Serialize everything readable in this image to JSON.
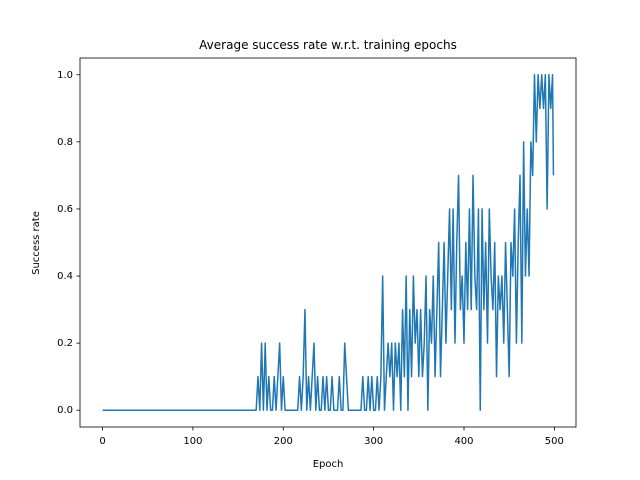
{
  "chart_data": {
    "type": "line",
    "title": "Average success rate w.r.t. training epochs",
    "xlabel": "Epoch",
    "ylabel": "Success rate",
    "color": "#1f77b4",
    "x": [
      0,
      168,
      170,
      172,
      174,
      176,
      178,
      180,
      182,
      184,
      186,
      188,
      190,
      192,
      194,
      196,
      198,
      200,
      202,
      204,
      206,
      208,
      210,
      212,
      214,
      216,
      218,
      220,
      222,
      224,
      226,
      228,
      230,
      232,
      234,
      236,
      238,
      240,
      242,
      244,
      246,
      248,
      250,
      252,
      254,
      256,
      258,
      260,
      262,
      264,
      266,
      268,
      270,
      272,
      274,
      276,
      278,
      280,
      282,
      284,
      286,
      288,
      290,
      292,
      294,
      296,
      298,
      300,
      302,
      304,
      306,
      308,
      310,
      312,
      314,
      316,
      318,
      320,
      322,
      324,
      326,
      328,
      330,
      332,
      334,
      336,
      338,
      340,
      342,
      344,
      346,
      348,
      350,
      352,
      354,
      356,
      358,
      360,
      362,
      364,
      366,
      368,
      370,
      372,
      374,
      376,
      378,
      380,
      382,
      384,
      386,
      388,
      390,
      392,
      394,
      396,
      398,
      400,
      402,
      404,
      406,
      408,
      410,
      412,
      414,
      416,
      418,
      420,
      422,
      424,
      426,
      428,
      430,
      432,
      434,
      436,
      438,
      440,
      442,
      444,
      446,
      448,
      450,
      452,
      454,
      456,
      458,
      460,
      462,
      464,
      466,
      468,
      470,
      472,
      474,
      476,
      478,
      480,
      482,
      484,
      486,
      488,
      490,
      492,
      494,
      496,
      498,
      499
    ],
    "values": [
      0,
      0,
      0,
      0.1,
      0,
      0.2,
      0,
      0.2,
      0,
      0.1,
      0,
      0,
      0.1,
      0,
      0.1,
      0.2,
      0,
      0.1,
      0,
      0,
      0,
      0,
      0,
      0,
      0,
      0,
      0.1,
      0,
      0.1,
      0.3,
      0,
      0.1,
      0,
      0.1,
      0.2,
      0,
      0.1,
      0,
      0,
      0.1,
      0,
      0.1,
      0,
      0,
      0.1,
      0,
      0,
      0,
      0.1,
      0,
      0,
      0.2,
      0.1,
      0,
      0,
      0,
      0,
      0,
      0,
      0,
      0,
      0.1,
      0,
      0,
      0.1,
      0,
      0.1,
      0,
      0,
      0.1,
      0,
      0.1,
      0.4,
      0,
      0.1,
      0.2,
      0.1,
      0.2,
      0,
      0.2,
      0.1,
      0.2,
      0,
      0.3,
      0.1,
      0.4,
      0,
      0.3,
      0.1,
      0.4,
      0.2,
      0.3,
      0.1,
      0.3,
      0.1,
      0.2,
      0.4,
      0,
      0.3,
      0.2,
      0.4,
      0.1,
      0.3,
      0.5,
      0.1,
      0.3,
      0.5,
      0.2,
      0.4,
      0.6,
      0.3,
      0.6,
      0.2,
      0.5,
      0.7,
      0.3,
      0.4,
      0.2,
      0.5,
      0.3,
      0.6,
      0.3,
      0.7,
      0.4,
      0.3,
      0.6,
      0,
      0.6,
      0.3,
      0.5,
      0.2,
      0.6,
      0.4,
      0.3,
      0.5,
      0.1,
      0.4,
      0.3,
      0.4,
      0.2,
      0.5,
      0.3,
      0.1,
      0.5,
      0.4,
      0.6,
      0.2,
      0.5,
      0.7,
      0.2,
      0.8,
      0.4,
      0.6,
      0.4,
      0.8,
      0.7,
      1.0,
      0.8,
      1.0,
      0.9,
      1.0,
      0.9,
      1.0,
      0.6,
      1.0,
      0.9,
      1.0,
      0.7
    ],
    "xlim": [
      -24.95,
      523.95
    ],
    "ylim": [
      -0.05,
      1.05
    ],
    "xticks": [
      0,
      100,
      200,
      300,
      400,
      500
    ],
    "yticks": [
      {
        "value": 0,
        "label": "0.0"
      },
      {
        "value": 0.2,
        "label": "0.2"
      },
      {
        "value": 0.4,
        "label": "0.4"
      },
      {
        "value": 0.6,
        "label": "0.6"
      },
      {
        "value": 0.8,
        "label": "0.8"
      },
      {
        "value": 1,
        "label": "1.0"
      }
    ]
  }
}
